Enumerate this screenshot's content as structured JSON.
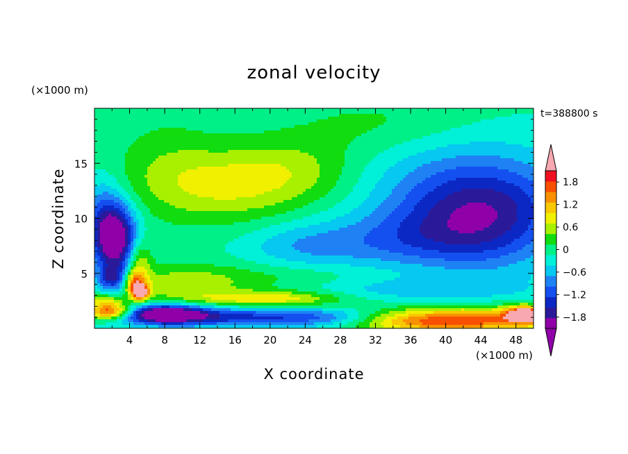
{
  "chart_data": {
    "type": "heatmap",
    "title": "zonal velocity",
    "xlabel": "X coordinate",
    "ylabel": "Z coordinate",
    "x_unit_label": "(×1000 m)",
    "y_unit_label": "(×1000 m)",
    "time_label": "t=388800 s",
    "xlim": [
      0,
      50
    ],
    "ylim": [
      0,
      20
    ],
    "x_ticks": [
      4,
      8,
      12,
      16,
      20,
      24,
      28,
      32,
      36,
      40,
      44,
      48
    ],
    "x_tick_labels": [
      "4",
      "8",
      "12",
      "16",
      "20",
      "24",
      "28",
      "32",
      "36",
      "40",
      "44",
      "48"
    ],
    "y_ticks": [
      5,
      10,
      15
    ],
    "y_tick_labels": [
      "5",
      "10",
      "15"
    ],
    "colorbar": {
      "levels": [
        -2.1,
        -1.8,
        -1.5,
        -1.2,
        -0.9,
        -0.6,
        -0.3,
        0,
        0.3,
        0.6,
        0.9,
        1.2,
        1.5,
        1.8,
        2.1
      ],
      "tick_values": [
        -1.8,
        -1.2,
        -0.6,
        0,
        0.6,
        1.2,
        1.8
      ],
      "tick_labels": [
        "−1.8",
        "−1.2",
        "−0.6",
        "0",
        "0.6",
        "1.2",
        "1.8"
      ],
      "colors": [
        "#8f00a8",
        "#2a1a9a",
        "#0c28c4",
        "#1450f0",
        "#1e82f5",
        "#06c8f0",
        "#00f0d8",
        "#00f088",
        "#10dc10",
        "#a8f000",
        "#f0f000",
        "#f8c800",
        "#f89000",
        "#f85000",
        "#f01020"
      ],
      "under_color": "#8f00a8",
      "over_color": "#f8a8b0"
    },
    "field_features": [
      {
        "x": 14.5,
        "z": 13.0,
        "sx": 7.0,
        "sz": 2.4,
        "value": 0.9
      },
      {
        "x": 23.0,
        "z": 14.5,
        "sx": 5.0,
        "sz": 2.0,
        "value": 0.45
      },
      {
        "x": 8.0,
        "z": 16.0,
        "sx": 4.0,
        "sz": 3.0,
        "value": 0.25
      },
      {
        "x": 33.0,
        "z": 18.5,
        "sx": 8.0,
        "sz": 2.0,
        "value": 0.35
      },
      {
        "x": 44.0,
        "z": 11.0,
        "sx": 7.0,
        "sz": 2.6,
        "value": -1.3
      },
      {
        "x": 37.0,
        "z": 8.0,
        "sx": 7.0,
        "sz": 2.0,
        "value": -0.9
      },
      {
        "x": 46.0,
        "z": 7.5,
        "sx": 5.0,
        "sz": 3.0,
        "value": -0.4
      },
      {
        "x": 24.0,
        "z": 7.5,
        "sx": 5.0,
        "sz": 1.5,
        "value": -0.6
      },
      {
        "x": 2.5,
        "z": 8.0,
        "sx": 1.7,
        "sz": 2.2,
        "value": -2.2
      },
      {
        "x": 1.0,
        "z": 10.0,
        "sx": 1.6,
        "sz": 2.5,
        "value": -0.9
      },
      {
        "x": 2.0,
        "z": 4.5,
        "sx": 1.2,
        "sz": 0.8,
        "value": -1.3
      },
      {
        "x": 4.5,
        "z": 4.2,
        "sx": 0.8,
        "sz": 0.7,
        "value": 1.2
      },
      {
        "x": 5.2,
        "z": 3.3,
        "sx": 0.7,
        "sz": 0.5,
        "value": 2.3
      },
      {
        "x": 5.0,
        "z": 6.0,
        "sx": 1.0,
        "sz": 1.6,
        "value": 1.0
      },
      {
        "x": 10.0,
        "z": 4.0,
        "sx": 5.0,
        "sz": 1.2,
        "value": 0.7
      },
      {
        "x": 20.0,
        "z": 2.7,
        "sx": 6.0,
        "sz": 0.5,
        "value": 1.1
      },
      {
        "x": 22.0,
        "z": 4.5,
        "sx": 8.0,
        "sz": 1.0,
        "value": 0.35
      },
      {
        "x": 8.0,
        "z": 1.3,
        "sx": 3.5,
        "sz": 0.6,
        "value": -2.3
      },
      {
        "x": 18.0,
        "z": 1.0,
        "sx": 9.0,
        "sz": 0.6,
        "value": -1.3
      },
      {
        "x": 27.0,
        "z": 0.8,
        "sx": 4.0,
        "sz": 0.6,
        "value": -0.3
      },
      {
        "x": 44.0,
        "z": 0.8,
        "sx": 8.0,
        "sz": 0.8,
        "value": 1.5
      },
      {
        "x": 37.0,
        "z": 0.6,
        "sx": 6.0,
        "sz": 0.7,
        "value": 0.9
      },
      {
        "x": 49.0,
        "z": 1.3,
        "sx": 1.5,
        "sz": 0.5,
        "value": 2.2
      },
      {
        "x": 1.8,
        "z": 1.5,
        "sx": 1.8,
        "sz": 0.5,
        "value": 2.3
      },
      {
        "x": 1.2,
        "z": 2.5,
        "sx": 1.4,
        "sz": 0.4,
        "value": 0.9
      },
      {
        "x": 35.0,
        "z": 3.5,
        "sx": 10.0,
        "sz": 0.8,
        "value": -0.5
      },
      {
        "x": 42.0,
        "z": 14.5,
        "sx": 8.0,
        "sz": 3.0,
        "value": -0.5
      }
    ]
  }
}
